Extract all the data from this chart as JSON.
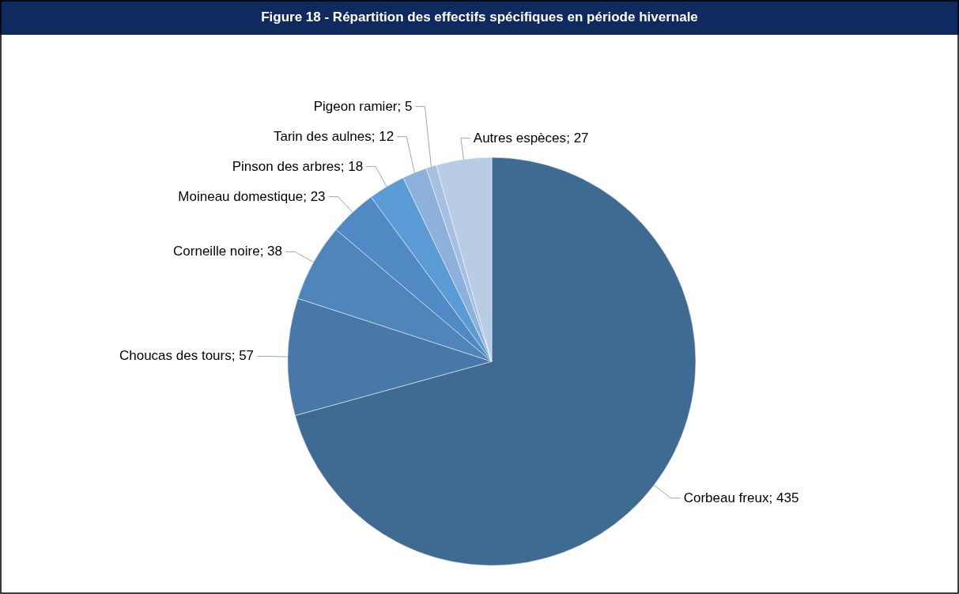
{
  "chart_data": {
    "type": "pie",
    "title": "Figure 18 - Répartition des effectifs spécifiques en période hivernale",
    "categories": [
      "Corbeau freux",
      "Choucas des tours",
      "Corneille noire",
      "Moineau domestique",
      "Pinson des arbres",
      "Tarin des aulnes",
      "Pigeon ramier",
      "Autres espèces"
    ],
    "values": [
      435,
      57,
      38,
      23,
      18,
      12,
      5,
      27
    ],
    "colors": [
      "#3f6b93",
      "#4878a8",
      "#4f85bb",
      "#5189c4",
      "#5b9bd5",
      "#8db1dc",
      "#a6c0e2",
      "#b8cce6"
    ],
    "value_labels": [
      "; 435",
      "; 57",
      "; 38",
      "; 23",
      "; 18",
      "; 12",
      "; 5",
      "; 27"
    ]
  }
}
